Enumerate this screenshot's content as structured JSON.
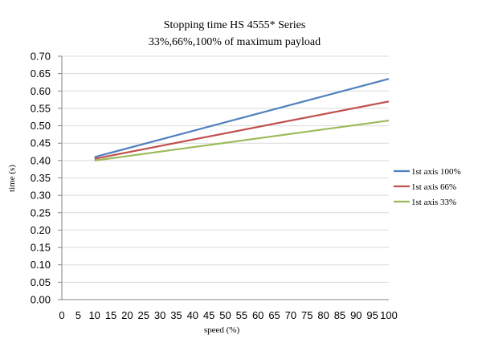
{
  "chart_data": {
    "type": "line",
    "title": "Stopping time HS 4555* Series",
    "subtitle": "33%,66%,100% of maximum payload",
    "xlabel": "speed (%)",
    "ylabel": "time (s)",
    "xlim": [
      0,
      100
    ],
    "ylim": [
      0,
      0.7
    ],
    "x_ticks": [
      "0",
      "5",
      "10",
      "15",
      "20",
      "25",
      "30",
      "35",
      "40",
      "45",
      "50",
      "55",
      "60",
      "65",
      "70",
      "75",
      "80",
      "85",
      "90",
      "95",
      "100"
    ],
    "y_ticks": [
      "0.00",
      "0.05",
      "0.10",
      "0.15",
      "0.20",
      "0.25",
      "0.30",
      "0.35",
      "0.40",
      "0.45",
      "0.50",
      "0.55",
      "0.60",
      "0.65",
      "0.70"
    ],
    "grid": "horizontal",
    "legend_position": "right",
    "series": [
      {
        "name": "1st axis 100%",
        "color": "#4f81bd",
        "x": [
          10,
          100
        ],
        "values": [
          0.41,
          0.635
        ]
      },
      {
        "name": "1st axis 66%",
        "color": "#c0504d",
        "x": [
          10,
          100
        ],
        "values": [
          0.405,
          0.57
        ]
      },
      {
        "name": "1st axis 33%",
        "color": "#9bbb59",
        "x": [
          10,
          100
        ],
        "values": [
          0.4,
          0.515
        ]
      }
    ]
  }
}
